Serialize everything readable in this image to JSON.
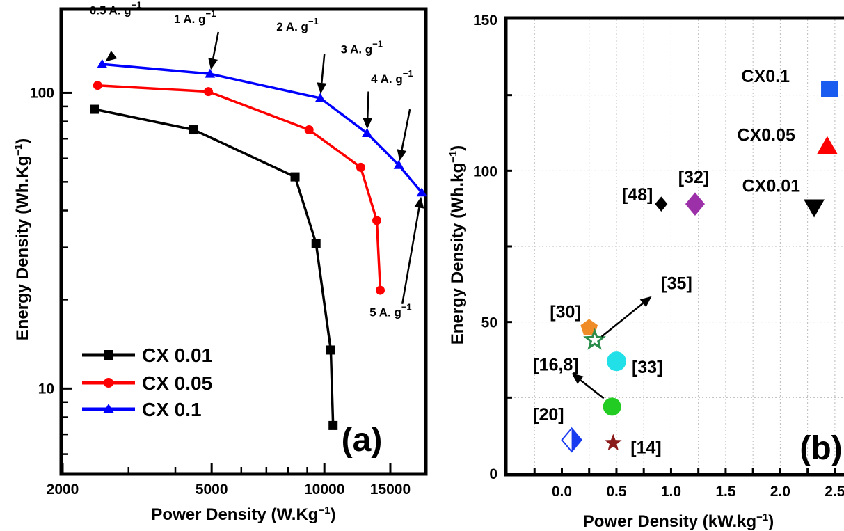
{
  "chart_data": [
    {
      "type": "line",
      "panel_label": "(a)",
      "xlabel": "Power Density (W.Kg",
      "xlabel_sup": "−1",
      "xlabel_suffix": ")",
      "ylabel": "Energy Density (Wh.Kg",
      "ylabel_sup": "−1",
      "ylabel_suffix": ")",
      "x_scale": "log",
      "y_scale": "log",
      "xlim": [
        2000,
        18500
      ],
      "ylim": [
        5.2,
        190
      ],
      "x_ticks": [
        2000,
        5000,
        10000,
        15000
      ],
      "x_tick_labels": [
        "2000",
        "5000",
        "10000",
        "15000"
      ],
      "y_ticks": [
        10,
        100
      ],
      "y_tick_labels": [
        "10",
        "100"
      ],
      "grid": false,
      "legend_position": "bottom-left",
      "series": [
        {
          "name": "CX 0.01",
          "color": "#000000",
          "marker": "square",
          "x": [
            2430,
            4480,
            8350,
            9500,
            10400,
            10550
          ],
          "y": [
            88,
            75,
            52,
            31,
            13.5,
            7.5
          ]
        },
        {
          "name": "CX 0.05",
          "color": "#ff0000",
          "marker": "circle",
          "x": [
            2480,
            4900,
            9100,
            12500,
            13800,
            14100
          ],
          "y": [
            106,
            101,
            75,
            56,
            37,
            21.5
          ]
        },
        {
          "name": "CX 0.1",
          "color": "#0000ff",
          "marker": "triangle",
          "x": [
            2550,
            4950,
            9750,
            13000,
            15800,
            18200
          ],
          "y": [
            125,
            116,
            96,
            73,
            57,
            46
          ]
        }
      ],
      "annotations": [
        {
          "label": "0.5 A. g",
          "sup": "−1",
          "target_series": "CX 0.1",
          "target_index": 0
        },
        {
          "label": "1 A. g",
          "sup": "−1",
          "target_series": "CX 0.1",
          "target_index": 1
        },
        {
          "label": "2 A. g",
          "sup": "−1",
          "target_series": "CX 0.1",
          "target_index": 2
        },
        {
          "label": "3 A. g",
          "sup": "−1",
          "target_series": "CX 0.1",
          "target_index": 3
        },
        {
          "label": "4 A. g",
          "sup": "−1",
          "target_series": "CX 0.1",
          "target_index": 4
        },
        {
          "label": "5 A. g",
          "sup": "−1",
          "target_series": "CX 0.1",
          "target_index": 5
        }
      ]
    },
    {
      "type": "scatter",
      "panel_label": "(b)",
      "xlabel": "Power Density (kW.kg",
      "xlabel_sup": "−1",
      "xlabel_suffix": ")",
      "ylabel": "Energy Density (Wh.kg",
      "ylabel_sup": "−1",
      "ylabel_suffix": ")",
      "xlim": [
        -0.5,
        2.66
      ],
      "ylim": [
        0,
        150
      ],
      "x_ticks": [
        0.0,
        0.5,
        1.0,
        1.5,
        2.0,
        2.5
      ],
      "x_tick_labels": [
        "0.0",
        "0.5",
        "1.0",
        "1.5",
        "2.0",
        "2.5"
      ],
      "y_ticks": [
        0,
        50,
        100,
        150
      ],
      "y_tick_labels": [
        "0",
        "50",
        "100",
        "150"
      ],
      "grid": true,
      "points": [
        {
          "label": "CX0.1",
          "x": 2.45,
          "y": 127,
          "shape": "square",
          "color": "#1a5cf0"
        },
        {
          "label": "CX0.05",
          "x": 2.43,
          "y": 108,
          "shape": "triangle",
          "color": "#ff0000"
        },
        {
          "label": "CX0.01",
          "x": 2.31,
          "y": 88,
          "shape": "triangle-down",
          "color": "#000000"
        },
        {
          "label": "[48]",
          "x": 0.91,
          "y": 89,
          "shape": "diamond",
          "color": "#000000"
        },
        {
          "label": "[32]",
          "x": 1.22,
          "y": 89,
          "shape": "diamond",
          "color": "#9b30a8"
        },
        {
          "label": "[30]",
          "x": 0.25,
          "y": 48,
          "shape": "pentagon",
          "color": "#f08c28"
        },
        {
          "label": "[35]",
          "x": 0.3,
          "y": 44,
          "shape": "star-open",
          "color": "#2a8c4a"
        },
        {
          "label": "[33]",
          "x": 0.5,
          "y": 37,
          "shape": "circle",
          "color": "#22e0e8"
        },
        {
          "label": "[16,8]",
          "x": 0.46,
          "y": 22,
          "shape": "circle",
          "color": "#22cc22"
        },
        {
          "label": "[20]",
          "x": 0.09,
          "y": 11,
          "shape": "diamond-half",
          "color": "#1a3cf0"
        },
        {
          "label": "[14]",
          "x": 0.47,
          "y": 10,
          "shape": "star",
          "color": "#8b1a1a"
        }
      ]
    }
  ]
}
